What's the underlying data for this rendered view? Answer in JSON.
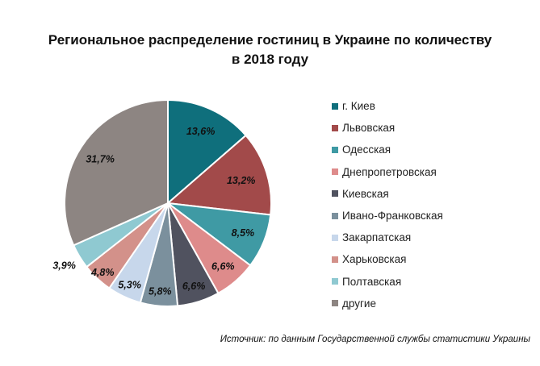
{
  "chart_data": {
    "type": "pie",
    "title_lines": [
      "Региональное распределение гостиниц в Украине по количеству",
      "в 2018 году"
    ],
    "slices": [
      {
        "label": "г. Киев",
        "value": 13.6,
        "value_label": "13,6%",
        "color": "#0f6f7c"
      },
      {
        "label": "Львовская",
        "value": 13.2,
        "value_label": "13,2%",
        "color": "#a24a4a"
      },
      {
        "label": "Одесская",
        "value": 8.5,
        "value_label": "8,5%",
        "color": "#3f9aa4"
      },
      {
        "label": "Днепропетровская",
        "value": 6.6,
        "value_label": "6,6%",
        "color": "#de8b8b"
      },
      {
        "label": "Киевская",
        "value": 6.6,
        "value_label": "6,6%",
        "color": "#50525f"
      },
      {
        "label": "Ивано-Франковская",
        "value": 5.8,
        "value_label": "5,8%",
        "color": "#7b909d"
      },
      {
        "label": "Закарпатская",
        "value": 5.3,
        "value_label": "5,3%",
        "color": "#c7d7eb"
      },
      {
        "label": "Харьковская",
        "value": 4.8,
        "value_label": "4,8%",
        "color": "#d3918a"
      },
      {
        "label": "Полтавская",
        "value": 3.9,
        "value_label": "3,9%",
        "color": "#8fc9d1"
      },
      {
        "label": "другие",
        "value": 31.7,
        "value_label": "31,7%",
        "color": "#8d8582"
      }
    ],
    "legend_position": "right"
  },
  "source": "Источник: по данным Государственной службы статистики Украины"
}
